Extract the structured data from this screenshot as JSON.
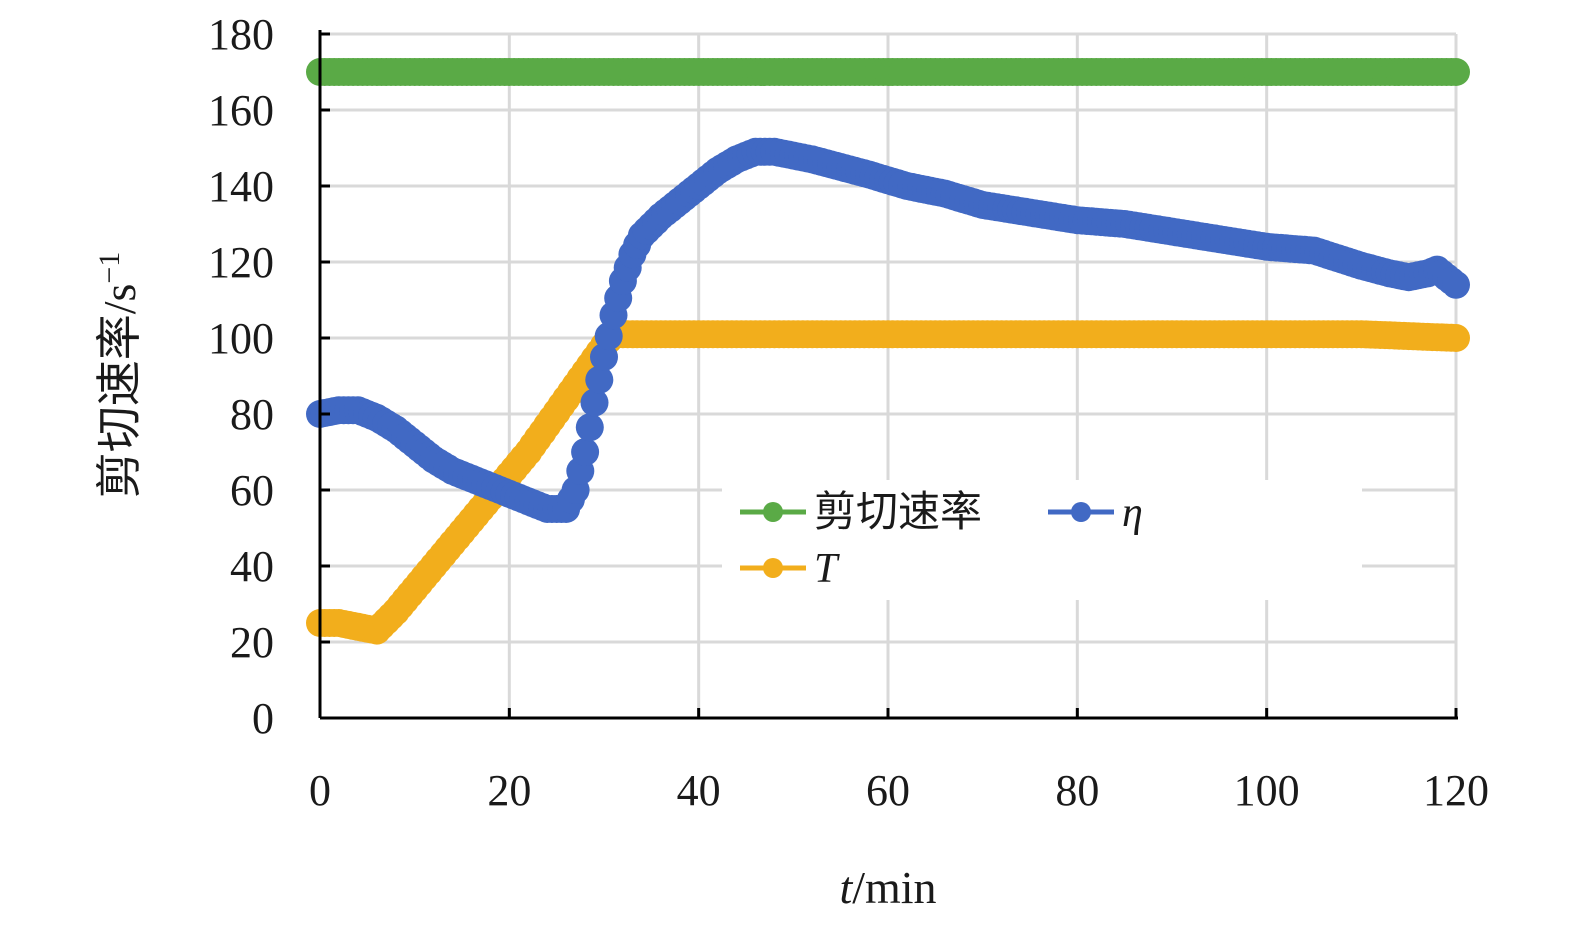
{
  "chart_data": {
    "type": "scatter",
    "title": "",
    "xlabel": {
      "italic_part": "t",
      "rest": "/min"
    },
    "ylabel": {
      "main": "剪切速率/s",
      "sup": "−1"
    },
    "xlim": [
      0,
      120
    ],
    "ylim": [
      0,
      180
    ],
    "xticks": [
      0,
      20,
      40,
      60,
      80,
      100,
      120
    ],
    "yticks": [
      0,
      20,
      40,
      60,
      80,
      100,
      120,
      140,
      160,
      180
    ],
    "grid": true,
    "legend_position": "center-right",
    "series": [
      {
        "name": "剪切速率",
        "color": "#5aaa46",
        "points": [
          [
            0,
            170
          ],
          [
            10,
            170
          ],
          [
            20,
            170
          ],
          [
            30,
            170
          ],
          [
            40,
            170
          ],
          [
            50,
            170
          ],
          [
            60,
            170
          ],
          [
            70,
            170
          ],
          [
            80,
            170
          ],
          [
            90,
            170
          ],
          [
            100,
            170
          ],
          [
            110,
            170
          ],
          [
            120,
            170
          ]
        ]
      },
      {
        "name": "T",
        "name_italic": true,
        "color": "#f2ae1c",
        "points": [
          [
            0,
            25
          ],
          [
            2,
            25
          ],
          [
            4,
            24
          ],
          [
            6,
            23
          ],
          [
            8,
            28
          ],
          [
            10,
            34
          ],
          [
            12,
            40
          ],
          [
            14,
            46
          ],
          [
            16,
            52
          ],
          [
            18,
            58
          ],
          [
            20,
            64
          ],
          [
            22,
            70
          ],
          [
            24,
            77
          ],
          [
            26,
            84
          ],
          [
            28,
            91
          ],
          [
            30,
            98
          ],
          [
            31,
            101
          ],
          [
            32,
            101
          ],
          [
            40,
            101
          ],
          [
            50,
            101
          ],
          [
            60,
            101
          ],
          [
            70,
            101
          ],
          [
            80,
            101
          ],
          [
            90,
            101
          ],
          [
            100,
            101
          ],
          [
            110,
            101
          ],
          [
            120,
            100
          ]
        ]
      },
      {
        "name": "η",
        "name_italic": true,
        "color": "#4169c4",
        "points": [
          [
            0,
            80
          ],
          [
            2,
            81
          ],
          [
            4,
            81
          ],
          [
            6,
            79
          ],
          [
            8,
            76
          ],
          [
            10,
            72
          ],
          [
            12,
            68
          ],
          [
            14,
            65
          ],
          [
            16,
            63
          ],
          [
            18,
            61
          ],
          [
            20,
            59
          ],
          [
            22,
            57
          ],
          [
            24,
            55
          ],
          [
            26,
            55
          ],
          [
            27,
            60
          ],
          [
            28,
            70
          ],
          [
            29,
            83
          ],
          [
            30,
            95
          ],
          [
            31,
            106
          ],
          [
            32,
            115
          ],
          [
            33,
            122
          ],
          [
            34,
            127
          ],
          [
            36,
            132
          ],
          [
            38,
            136
          ],
          [
            40,
            140
          ],
          [
            42,
            144
          ],
          [
            44,
            147
          ],
          [
            46,
            149
          ],
          [
            48,
            149
          ],
          [
            50,
            148
          ],
          [
            52,
            147
          ],
          [
            55,
            145
          ],
          [
            58,
            143
          ],
          [
            62,
            140
          ],
          [
            66,
            138
          ],
          [
            70,
            135
          ],
          [
            75,
            133
          ],
          [
            80,
            131
          ],
          [
            85,
            130
          ],
          [
            90,
            128
          ],
          [
            95,
            126
          ],
          [
            100,
            124
          ],
          [
            105,
            123
          ],
          [
            110,
            119
          ],
          [
            113,
            117
          ],
          [
            115,
            116
          ],
          [
            117,
            117
          ],
          [
            118,
            118
          ],
          [
            119,
            116
          ],
          [
            120,
            114
          ]
        ]
      }
    ]
  }
}
